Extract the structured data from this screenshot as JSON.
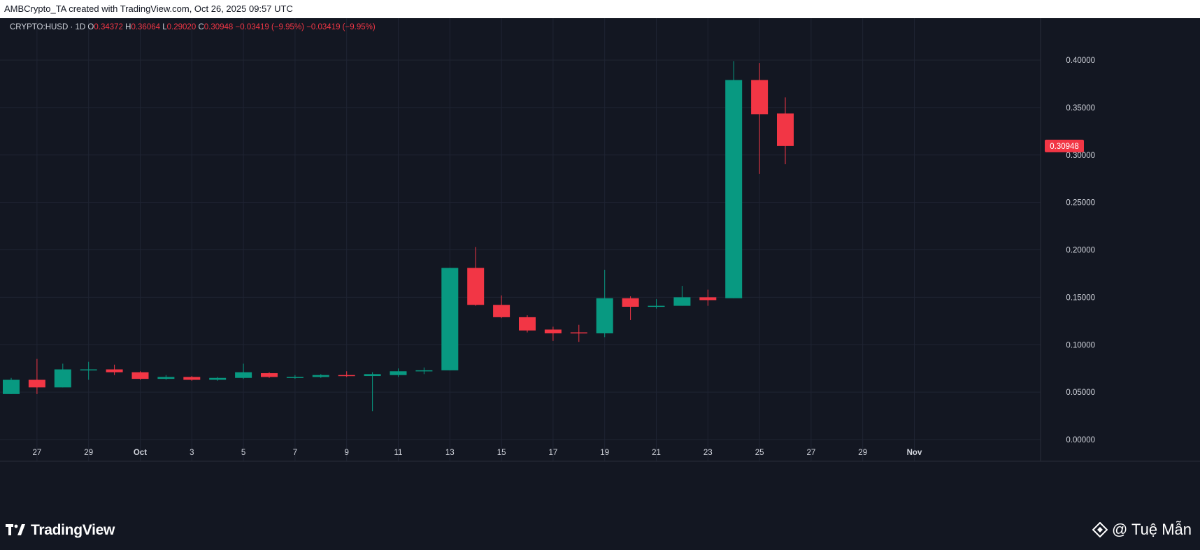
{
  "header": {
    "attribution": "AMBCrypto_TA created with TradingView.com, Oct 26, 2025 09:57 UTC"
  },
  "legend": {
    "symbol": "CRYPTO:HUSD · 1D",
    "o_label": "O",
    "o_value": "0.34372",
    "h_label": "H",
    "h_value": "0.36064",
    "l_label": "L",
    "l_value": "0.29020",
    "c_label": "C",
    "c_value": "0.30948",
    "change": "−0.03419 (−9.95%)",
    "change_repeat": "−0.03419 (−9.95%)"
  },
  "footer": {
    "brand": "TradingView",
    "watermark": "@ Tuệ Mẫn"
  },
  "colors": {
    "background": "#131722",
    "up": "#089981",
    "down": "#f23645",
    "grid": "#1f2433",
    "text": "#d1d4dc"
  },
  "chart_data": {
    "type": "candlestick",
    "y_axis_side": "right",
    "ylim": [
      0.0,
      0.4
    ],
    "yticks": [
      "0.40000",
      "0.35000",
      "0.30000",
      "0.25000",
      "0.20000",
      "0.15000",
      "0.10000",
      "0.05000",
      "0.00000"
    ],
    "xticks": [
      "27",
      "29",
      "Oct",
      "3",
      "5",
      "7",
      "9",
      "11",
      "13",
      "15",
      "17",
      "19",
      "21",
      "23",
      "25",
      "27",
      "29",
      "Nov"
    ],
    "last_price_label": "0.30948",
    "candles": [
      {
        "date": "Sep 26",
        "o": 0.048,
        "h": 0.065,
        "l": 0.048,
        "c": 0.063
      },
      {
        "date": "Sep 27",
        "o": 0.063,
        "h": 0.085,
        "l": 0.048,
        "c": 0.055
      },
      {
        "date": "Sep 28",
        "o": 0.055,
        "h": 0.08,
        "l": 0.055,
        "c": 0.074
      },
      {
        "date": "Sep 29",
        "o": 0.074,
        "h": 0.082,
        "l": 0.063,
        "c": 0.074
      },
      {
        "date": "Sep 30",
        "o": 0.074,
        "h": 0.079,
        "l": 0.068,
        "c": 0.071
      },
      {
        "date": "Oct 1",
        "o": 0.071,
        "h": 0.072,
        "l": 0.063,
        "c": 0.064
      },
      {
        "date": "Oct 2",
        "o": 0.064,
        "h": 0.068,
        "l": 0.063,
        "c": 0.066
      },
      {
        "date": "Oct 3",
        "o": 0.066,
        "h": 0.067,
        "l": 0.062,
        "c": 0.063
      },
      {
        "date": "Oct 4",
        "o": 0.063,
        "h": 0.066,
        "l": 0.062,
        "c": 0.065
      },
      {
        "date": "Oct 5",
        "o": 0.065,
        "h": 0.08,
        "l": 0.064,
        "c": 0.071
      },
      {
        "date": "Oct 6",
        "o": 0.07,
        "h": 0.071,
        "l": 0.065,
        "c": 0.066
      },
      {
        "date": "Oct 7",
        "o": 0.066,
        "h": 0.068,
        "l": 0.064,
        "c": 0.066
      },
      {
        "date": "Oct 8",
        "o": 0.066,
        "h": 0.069,
        "l": 0.065,
        "c": 0.068
      },
      {
        "date": "Oct 9",
        "o": 0.068,
        "h": 0.072,
        "l": 0.066,
        "c": 0.067
      },
      {
        "date": "Oct 10",
        "o": 0.067,
        "h": 0.071,
        "l": 0.03,
        "c": 0.069
      },
      {
        "date": "Oct 11",
        "o": 0.068,
        "h": 0.075,
        "l": 0.066,
        "c": 0.072
      },
      {
        "date": "Oct 12",
        "o": 0.072,
        "h": 0.076,
        "l": 0.069,
        "c": 0.073
      },
      {
        "date": "Oct 13",
        "o": 0.073,
        "h": 0.181,
        "l": 0.073,
        "c": 0.181
      },
      {
        "date": "Oct 14",
        "o": 0.181,
        "h": 0.203,
        "l": 0.141,
        "c": 0.142
      },
      {
        "date": "Oct 15",
        "o": 0.142,
        "h": 0.152,
        "l": 0.128,
        "c": 0.129
      },
      {
        "date": "Oct 16",
        "o": 0.129,
        "h": 0.131,
        "l": 0.113,
        "c": 0.115
      },
      {
        "date": "Oct 17",
        "o": 0.116,
        "h": 0.119,
        "l": 0.104,
        "c": 0.112
      },
      {
        "date": "Oct 18",
        "o": 0.113,
        "h": 0.121,
        "l": 0.103,
        "c": 0.112
      },
      {
        "date": "Oct 19",
        "o": 0.112,
        "h": 0.179,
        "l": 0.108,
        "c": 0.149
      },
      {
        "date": "Oct 20",
        "o": 0.149,
        "h": 0.151,
        "l": 0.126,
        "c": 0.14
      },
      {
        "date": "Oct 21",
        "o": 0.14,
        "h": 0.148,
        "l": 0.138,
        "c": 0.141
      },
      {
        "date": "Oct 22",
        "o": 0.141,
        "h": 0.162,
        "l": 0.141,
        "c": 0.15
      },
      {
        "date": "Oct 23",
        "o": 0.15,
        "h": 0.158,
        "l": 0.141,
        "c": 0.147
      },
      {
        "date": "Oct 24",
        "o": 0.149,
        "h": 0.399,
        "l": 0.149,
        "c": 0.379
      },
      {
        "date": "Oct 25",
        "o": 0.379,
        "h": 0.397,
        "l": 0.28,
        "c": 0.343
      },
      {
        "date": "Oct 26",
        "o": 0.34372,
        "h": 0.36064,
        "l": 0.2902,
        "c": 0.30948
      }
    ]
  }
}
